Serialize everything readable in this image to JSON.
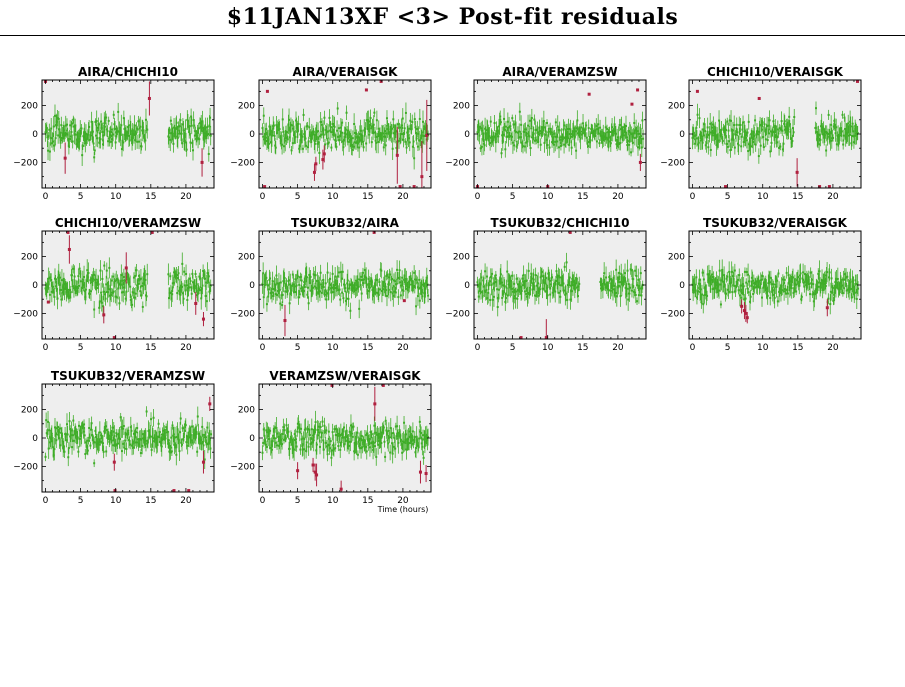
{
  "page": {
    "title": "$11JAN13XF <3> Post-fit residuals",
    "xlabel": "Time (hours)"
  },
  "colors": {
    "panel_bg": "#eeeeee",
    "good_points": "#3fad28",
    "flagged_points": "#b0203f",
    "axis": "#000000"
  },
  "chart_data": {
    "type": "scatter",
    "title": "$11JAN13XF <3> Post-fit residuals",
    "xlabel": "Time (hours)",
    "ylabel": "",
    "xlim": [
      -0.5,
      24
    ],
    "ylim": [
      -380,
      380
    ],
    "xticks": [
      0,
      5,
      10,
      15,
      20
    ],
    "yticks": [
      -200,
      0,
      200
    ],
    "grid": false,
    "panels": [
      {
        "baseline": "AIRA/CHICHI10",
        "row": 0,
        "col": 0,
        "good_segments": [
          [
            0.0,
            14.5
          ],
          [
            17.5,
            23.6
          ]
        ],
        "flagged": [
          [
            0.0,
            370,
            0
          ],
          [
            2.8,
            -170,
            110
          ],
          [
            14.8,
            250,
            120
          ],
          [
            22.3,
            -200,
            100
          ]
        ]
      },
      {
        "baseline": "AIRA/VERAISGK",
        "row": 0,
        "col": 1,
        "good_segments": [
          [
            0.0,
            23.6
          ]
        ],
        "flagged": [
          [
            0.3,
            -370,
            0
          ],
          [
            0.7,
            300,
            0
          ],
          [
            7.4,
            -270,
            60
          ],
          [
            7.6,
            -210,
            50
          ],
          [
            8.6,
            -180,
            70
          ],
          [
            8.8,
            -140,
            60
          ],
          [
            14.8,
            310,
            0
          ],
          [
            16.9,
            370,
            0
          ],
          [
            19.2,
            -150,
            200
          ],
          [
            19.6,
            -370,
            0
          ],
          [
            21.6,
            -370,
            0
          ],
          [
            22.7,
            -300,
            250
          ],
          [
            23.4,
            -10,
            250
          ]
        ]
      },
      {
        "baseline": "AIRA/VERAMZSW",
        "row": 0,
        "col": 2,
        "good_segments": [
          [
            0.0,
            23.6
          ]
        ],
        "flagged": [
          [
            0.0,
            -370,
            0
          ],
          [
            10.0,
            -370,
            0
          ],
          [
            15.9,
            280,
            0
          ],
          [
            22.0,
            210,
            0
          ],
          [
            22.8,
            310,
            0
          ],
          [
            23.2,
            -200,
            60
          ]
        ]
      },
      {
        "baseline": "CHICHI10/VERAISGK",
        "row": 0,
        "col": 3,
        "good_segments": [
          [
            0.0,
            14.5
          ],
          [
            17.5,
            23.6
          ]
        ],
        "flagged": [
          [
            0.7,
            300,
            0
          ],
          [
            4.7,
            -370,
            0
          ],
          [
            9.5,
            250,
            0
          ],
          [
            14.9,
            -270,
            100
          ],
          [
            18.1,
            -370,
            0
          ],
          [
            19.5,
            -370,
            0
          ],
          [
            23.5,
            370,
            0
          ]
        ]
      },
      {
        "baseline": "CHICHI10/VERAMZSW",
        "row": 1,
        "col": 0,
        "good_segments": [
          [
            0.0,
            14.5
          ],
          [
            17.5,
            23.6
          ]
        ],
        "flagged": [
          [
            0.4,
            -120,
            0
          ],
          [
            3.2,
            370,
            0
          ],
          [
            3.4,
            250,
            100
          ],
          [
            8.3,
            -210,
            60
          ],
          [
            9.8,
            -370,
            0
          ],
          [
            11.5,
            120,
            110
          ],
          [
            15.2,
            370,
            0
          ],
          [
            21.4,
            -130,
            80
          ],
          [
            22.5,
            -240,
            50
          ]
        ]
      },
      {
        "baseline": "TSUKUB32/AIRA",
        "row": 1,
        "col": 1,
        "good_segments": [
          [
            0.0,
            23.6
          ]
        ],
        "flagged": [
          [
            3.2,
            -250,
            110
          ],
          [
            15.9,
            370,
            0
          ],
          [
            20.2,
            -110,
            0
          ]
        ]
      },
      {
        "baseline": "TSUKUB32/CHICHI10",
        "row": 1,
        "col": 2,
        "good_segments": [
          [
            0.0,
            14.5
          ],
          [
            17.5,
            23.6
          ]
        ],
        "flagged": [
          [
            6.2,
            -370,
            0
          ],
          [
            9.8,
            -370,
            130
          ],
          [
            13.2,
            370,
            0
          ]
        ]
      },
      {
        "baseline": "TSUKUB32/VERAISGK",
        "row": 1,
        "col": 3,
        "good_segments": [
          [
            0.0,
            23.6
          ]
        ],
        "flagged": [
          [
            7.0,
            -150,
            50
          ],
          [
            7.4,
            -180,
            60
          ],
          [
            7.6,
            -200,
            60
          ],
          [
            7.8,
            -230,
            40
          ],
          [
            19.2,
            -160,
            60
          ]
        ]
      },
      {
        "baseline": "TSUKUB32/VERAMZSW",
        "row": 2,
        "col": 0,
        "good_segments": [
          [
            0.0,
            23.6
          ]
        ],
        "flagged": [
          [
            9.8,
            -170,
            60
          ],
          [
            9.9,
            -370,
            0
          ],
          [
            18.3,
            -370,
            0
          ],
          [
            20.4,
            -370,
            0
          ],
          [
            22.5,
            -170,
            80
          ],
          [
            23.4,
            240,
            50
          ]
        ]
      },
      {
        "baseline": "VERAMZSW/VERAISGK",
        "row": 2,
        "col": 1,
        "good_segments": [
          [
            0.0,
            23.6
          ]
        ],
        "flagged": [
          [
            5.0,
            -230,
            60
          ],
          [
            7.2,
            -190,
            50
          ],
          [
            7.5,
            -240,
            60
          ],
          [
            7.7,
            -260,
            80
          ],
          [
            9.9,
            370,
            0
          ],
          [
            11.2,
            -360,
            60
          ],
          [
            16.0,
            240,
            120
          ],
          [
            17.2,
            370,
            0
          ],
          [
            22.5,
            -240,
            80
          ],
          [
            23.3,
            -250,
            60
          ]
        ]
      }
    ]
  }
}
